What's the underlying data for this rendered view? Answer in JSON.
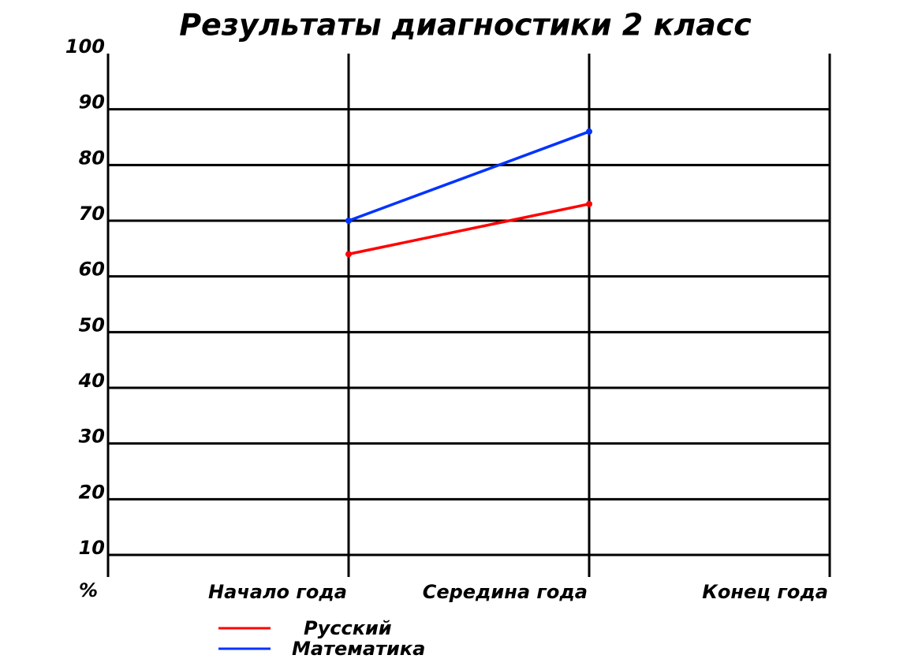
{
  "chart_data": {
    "type": "line",
    "title": "Результаты диагностики 2 класс",
    "y_label": "%",
    "categories": [
      "Начало года",
      "Середина года",
      "Конец года"
    ],
    "series": [
      {
        "name": "Русский",
        "color": "#ff0000",
        "values": [
          64,
          73,
          null
        ]
      },
      {
        "name": "Математика",
        "color": "#0033ff",
        "values": [
          70,
          86,
          null
        ]
      }
    ],
    "ylim": [
      10,
      100
    ],
    "yticks": [
      10,
      20,
      30,
      40,
      50,
      60,
      70,
      80,
      90,
      100
    ],
    "grid": true
  }
}
